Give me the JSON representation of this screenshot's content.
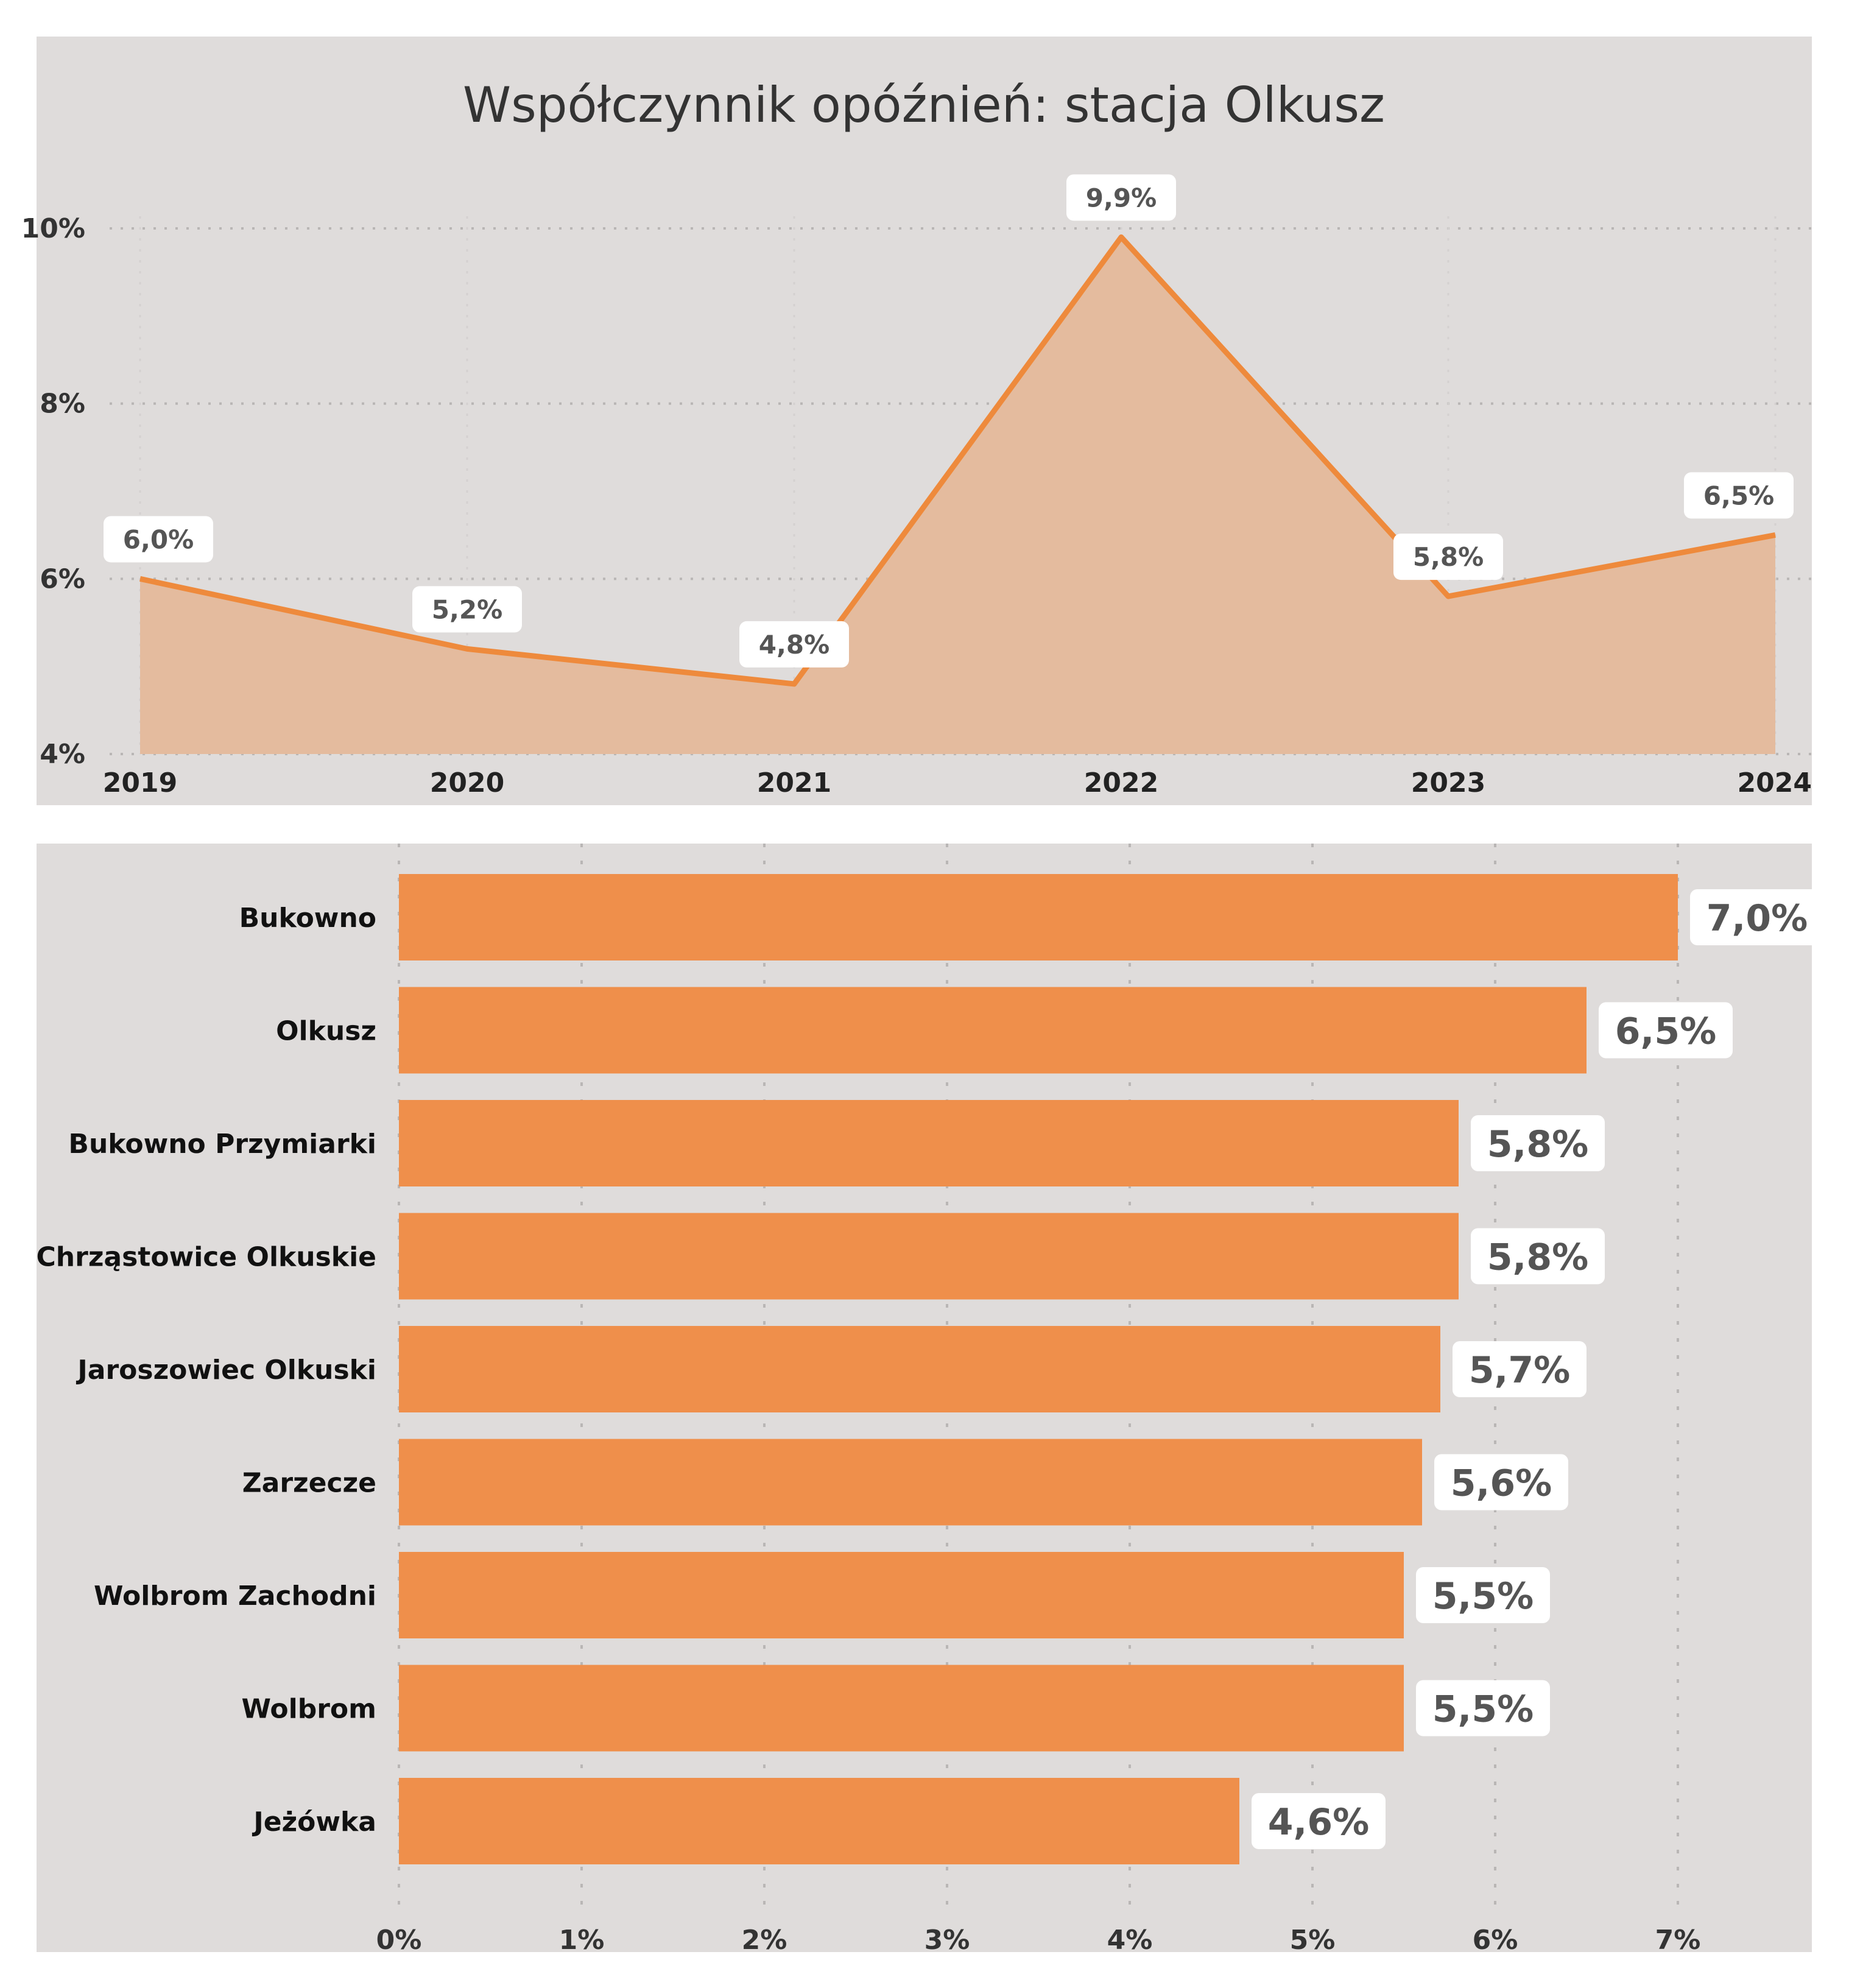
{
  "chart_data": [
    {
      "type": "area",
      "title": "Współczynnik opóźnień: stacja Olkusz",
      "xlabel": "",
      "ylabel": "",
      "x": [
        "2019",
        "2020",
        "2021",
        "2022",
        "2023",
        "2024"
      ],
      "values": [
        6.0,
        5.2,
        4.8,
        9.9,
        5.8,
        6.5
      ],
      "data_labels": [
        "6,0%",
        "5,2%",
        "4,8%",
        "9,9%",
        "5,8%",
        "6,5%"
      ],
      "ylim": [
        4,
        10
      ],
      "yticks": [
        4,
        6,
        8,
        10
      ],
      "ytick_labels": [
        "4%",
        "6%",
        "8%",
        "10%"
      ],
      "grid": true,
      "legend": "none",
      "colors": {
        "line": "#ee8a3c",
        "fill": "#e4bb9e",
        "background": "#dfdcdb",
        "label_box": "#ffffff"
      }
    },
    {
      "type": "bar",
      "orientation": "horizontal",
      "title": "",
      "xlabel": "",
      "ylabel": "",
      "categories": [
        "Bukowno",
        "Olkusz",
        "Bukowno Przymiarki",
        "Chrząstowice Olkuskie",
        "Jaroszowiec Olkuski",
        "Zarzecze",
        "Wolbrom Zachodni",
        "Wolbrom",
        "Jeżówka"
      ],
      "values": [
        7.0,
        6.5,
        5.8,
        5.8,
        5.7,
        5.6,
        5.5,
        5.5,
        4.6
      ],
      "data_labels": [
        "7,0%",
        "6,5%",
        "5,8%",
        "5,8%",
        "5,7%",
        "5,6%",
        "5,5%",
        "5,5%",
        "4,6%"
      ],
      "xlim": [
        0,
        7.75
      ],
      "xticks": [
        0,
        1,
        2,
        3,
        4,
        5,
        6,
        7
      ],
      "xtick_labels": [
        "0%",
        "1%",
        "2%",
        "3%",
        "4%",
        "5%",
        "6%",
        "7%"
      ],
      "grid": true,
      "legend": "none",
      "colors": {
        "bar": "#ef8f4b",
        "background": "#dfdcdb",
        "label_box": "#ffffff"
      }
    }
  ]
}
